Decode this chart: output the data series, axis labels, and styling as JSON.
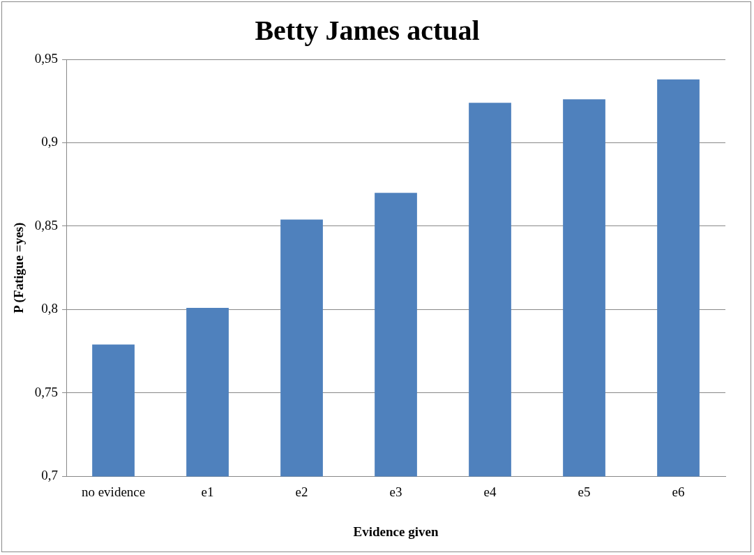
{
  "chart_data": {
    "type": "bar",
    "title": "Betty James actual",
    "xlabel": "Evidence given",
    "ylabel": "P (Fatigue =yes)",
    "categories": [
      "no evidence",
      "e1",
      "e2",
      "e3",
      "e4",
      "e5",
      "e6"
    ],
    "values": [
      0.779,
      0.801,
      0.854,
      0.87,
      0.924,
      0.926,
      0.938
    ],
    "color": "#4f81bd",
    "ylim": [
      0.7,
      0.95
    ],
    "yticks": [
      {
        "value": 0.7,
        "label": "0,7"
      },
      {
        "value": 0.75,
        "label": "0,75"
      },
      {
        "value": 0.8,
        "label": "0,8"
      },
      {
        "value": 0.85,
        "label": "0,85"
      },
      {
        "value": 0.9,
        "label": "0,9"
      },
      {
        "value": 0.95,
        "label": "0,95"
      }
    ],
    "grid": "y",
    "legend": false
  }
}
